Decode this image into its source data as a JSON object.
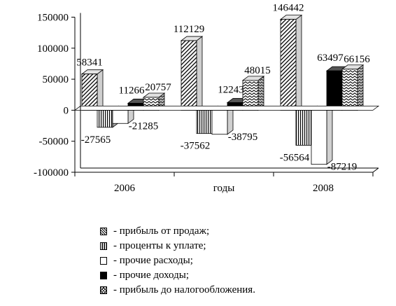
{
  "chart_data": {
    "type": "bar",
    "style": "3d-clustered",
    "categories": [
      "2006",
      "годы",
      "2008"
    ],
    "xlabel": "",
    "ylabel": "",
    "ylim": [
      -100000,
      150000
    ],
    "yticks": [
      "150000",
      "100000",
      "50000",
      "0",
      "-50000",
      "-100000"
    ],
    "grid": false,
    "legend_position": "bottom",
    "series": [
      {
        "name": "- прибыль от продаж;",
        "pattern": "diagonal-hatch",
        "values": [
          58341,
          112129,
          146442
        ],
        "labels": [
          "58341",
          "112129",
          "146442"
        ]
      },
      {
        "name": "- проценты к уплате;",
        "pattern": "vertical-lines",
        "values": [
          -27565,
          -37562,
          -56564
        ],
        "labels": [
          "-27565",
          "-37562",
          "-56564"
        ]
      },
      {
        "name": "- прочие расходы;",
        "pattern": "white",
        "values": [
          -21285,
          -38795,
          -87219
        ],
        "labels": [
          "-21285",
          "-38795",
          "-87219"
        ]
      },
      {
        "name": "- прочие доходы;",
        "pattern": "black",
        "values": [
          11266,
          12243,
          63497
        ],
        "labels": [
          "11266",
          "12243",
          "63497"
        ]
      },
      {
        "name": "- прибыль до налогообложения.",
        "pattern": "zigzag",
        "values": [
          20757,
          48015,
          66156
        ],
        "labels": [
          "20757",
          "48015",
          "66156"
        ]
      }
    ]
  }
}
